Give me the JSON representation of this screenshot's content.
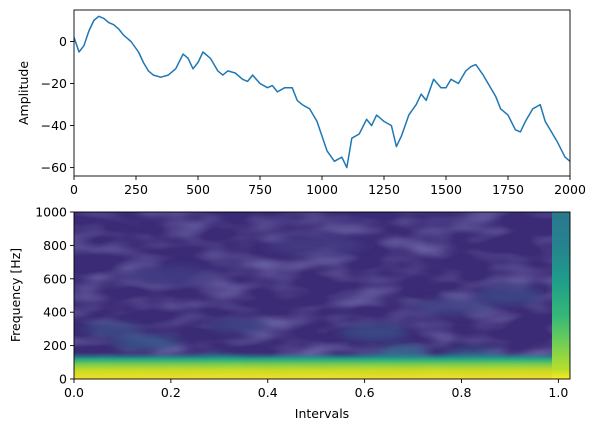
{
  "chart_data": [
    {
      "type": "line",
      "title": "",
      "xlabel": "",
      "ylabel": "Amplitude",
      "xlim": [
        0,
        2000
      ],
      "ylim": [
        -64,
        15
      ],
      "xticks": [
        0,
        250,
        500,
        750,
        1000,
        1250,
        1500,
        1750,
        2000
      ],
      "yticks": [
        0,
        -20,
        -40,
        -60
      ],
      "grid": false,
      "line_color": "#1f77b4",
      "series": [
        {
          "x": [
            0,
            20,
            40,
            60,
            80,
            100,
            120,
            140,
            160,
            180,
            200,
            230,
            260,
            280,
            300,
            320,
            350,
            380,
            410,
            440,
            460,
            480,
            500,
            520,
            550,
            580,
            600,
            620,
            650,
            680,
            700,
            720,
            750,
            780,
            800,
            820,
            850,
            880,
            900,
            920,
            950,
            980,
            1000,
            1020,
            1050,
            1080,
            1100,
            1120,
            1150,
            1180,
            1200,
            1220,
            1250,
            1280,
            1300,
            1320,
            1350,
            1380,
            1400,
            1420,
            1450,
            1480,
            1500,
            1520,
            1550,
            1580,
            1600,
            1620,
            1650,
            1680,
            1700,
            1720,
            1750,
            1780,
            1800,
            1820,
            1850,
            1880,
            1900,
            1920,
            1950,
            1980,
            2000
          ],
          "y": [
            2,
            -5,
            -2,
            5,
            10,
            12,
            11,
            9,
            8,
            6,
            3,
            0,
            -5,
            -10,
            -14,
            -16,
            -17,
            -16,
            -13,
            -6,
            -8,
            -13,
            -10,
            -5,
            -8,
            -14,
            -16,
            -14,
            -15,
            -18,
            -19,
            -16,
            -20,
            -22,
            -21,
            -24,
            -22,
            -22,
            -28,
            -30,
            -32,
            -38,
            -45,
            -52,
            -57,
            -55,
            -60,
            -46,
            -44,
            -37,
            -40,
            -35,
            -38,
            -40,
            -50,
            -45,
            -35,
            -30,
            -25,
            -28,
            -18,
            -22,
            -22,
            -18,
            -20,
            -14,
            -12,
            -11,
            -16,
            -22,
            -26,
            -32,
            -35,
            -42,
            -43,
            -38,
            -32,
            -30,
            -38,
            -42,
            -48,
            -55,
            -57
          ]
        }
      ]
    },
    {
      "type": "heatmap",
      "title": "",
      "xlabel": "Intervals",
      "ylabel": "Frequency [Hz]",
      "xlim": [
        0,
        1.024
      ],
      "ylim": [
        0,
        1000
      ],
      "xticks": [
        0.0,
        0.2,
        0.4,
        0.6,
        0.8,
        1.0
      ],
      "xtick_labels": [
        "0.0",
        "0.2",
        "0.4",
        "0.6",
        "0.8",
        "1.0"
      ],
      "yticks": [
        0,
        200,
        400,
        600,
        800,
        1000
      ],
      "colormap": "viridis",
      "grid": false
    }
  ]
}
